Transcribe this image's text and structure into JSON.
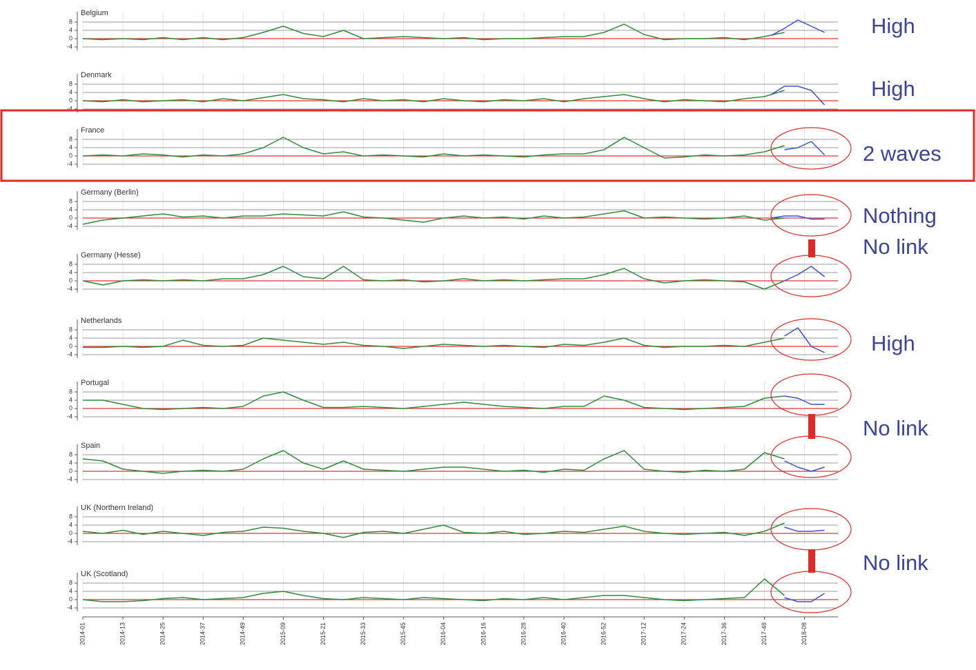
{
  "chart_data": [
    {
      "type": "line",
      "title": "Belgium",
      "ylim": [
        -5,
        11
      ],
      "yticks": [
        -4,
        0,
        4,
        8
      ],
      "series": [
        {
          "color": "#2e8b3a",
          "x": [
            0,
            6,
            12,
            18,
            24,
            30,
            36,
            42,
            48,
            54,
            60,
            66,
            72,
            78,
            84,
            90,
            96,
            102,
            108,
            114,
            120,
            126,
            132,
            138,
            144,
            150,
            156,
            162,
            168,
            174,
            180,
            186,
            192,
            198,
            204,
            210
          ],
          "values": [
            0,
            -0.5,
            0,
            -0.5,
            0.5,
            -0.5,
            0.5,
            -0.5,
            0.5,
            3,
            6,
            2.5,
            1,
            4,
            0,
            0.5,
            1,
            0.5,
            0,
            0.5,
            -0.5,
            0,
            0,
            0.5,
            1,
            1,
            3,
            7,
            2,
            -0.5,
            0,
            0,
            0.5,
            -0.5,
            1,
            3
          ]
        },
        {
          "color": "#3b4fd0",
          "x": [
            206,
            210,
            214,
            218,
            222
          ],
          "values": [
            1.5,
            5,
            9,
            6,
            3
          ]
        }
      ]
    },
    {
      "type": "line",
      "title": "Denmark",
      "ylim": [
        -5,
        11
      ],
      "yticks": [
        -4,
        0,
        4,
        8
      ],
      "series": [
        {
          "color": "#2e8b3a",
          "x": [
            0,
            6,
            12,
            18,
            24,
            30,
            36,
            42,
            48,
            54,
            60,
            66,
            72,
            78,
            84,
            90,
            96,
            102,
            108,
            114,
            120,
            126,
            132,
            138,
            144,
            150,
            156,
            162,
            168,
            174,
            180,
            186,
            192,
            198,
            204,
            210
          ],
          "values": [
            0,
            -0.5,
            0.5,
            -0.5,
            0,
            0.5,
            -0.5,
            1,
            0,
            1.5,
            3,
            1,
            0.5,
            -0.5,
            1,
            0,
            0.5,
            -0.5,
            1,
            0,
            -0.5,
            0.5,
            0,
            1,
            -0.5,
            1,
            2,
            3,
            1,
            -0.5,
            0.5,
            0,
            -0.5,
            1,
            2,
            5
          ]
        },
        {
          "color": "#3b4fd0",
          "x": [
            206,
            210,
            214,
            218,
            222
          ],
          "values": [
            3,
            7,
            7,
            5,
            -2
          ]
        }
      ]
    },
    {
      "type": "line",
      "title": "France",
      "ylim": [
        -5,
        11
      ],
      "yticks": [
        -4,
        0,
        4,
        8
      ],
      "series": [
        {
          "color": "#2e8b3a",
          "x": [
            0,
            6,
            12,
            18,
            24,
            30,
            36,
            42,
            48,
            54,
            60,
            66,
            72,
            78,
            84,
            90,
            96,
            102,
            108,
            114,
            120,
            126,
            132,
            138,
            144,
            150,
            156,
            162,
            168,
            174,
            180,
            186,
            192,
            198,
            204,
            210
          ],
          "values": [
            0,
            0.5,
            0,
            1,
            0.5,
            -0.5,
            0.5,
            0,
            1,
            4,
            9,
            4,
            1,
            2,
            0,
            0.5,
            0,
            -0.5,
            1,
            0,
            0.5,
            0,
            -0.5,
            0.5,
            1,
            1,
            3,
            9,
            4,
            -1,
            -0.5,
            0.5,
            0,
            0.5,
            2,
            5
          ]
        },
        {
          "color": "#3b4fd0",
          "x": [
            210,
            214,
            218,
            222
          ],
          "values": [
            3,
            4,
            7,
            0.5
          ]
        }
      ]
    },
    {
      "type": "line",
      "title": "Germany (Berlin)",
      "ylim": [
        -5,
        11
      ],
      "yticks": [
        -4,
        0,
        4,
        8
      ],
      "series": [
        {
          "color": "#2e8b3a",
          "x": [
            0,
            6,
            12,
            18,
            24,
            30,
            36,
            42,
            48,
            54,
            60,
            66,
            72,
            78,
            84,
            90,
            96,
            102,
            108,
            114,
            120,
            126,
            132,
            138,
            144,
            150,
            156,
            162,
            168,
            174,
            180,
            186,
            192,
            198,
            204,
            210
          ],
          "values": [
            -3,
            -1,
            0,
            1,
            2,
            0.5,
            1,
            0,
            1,
            1,
            2,
            1.5,
            1,
            3,
            0.5,
            0,
            -1,
            -2,
            0,
            1,
            0,
            0.5,
            -0.5,
            1,
            0,
            0.5,
            2,
            3.5,
            0,
            0.5,
            0,
            -0.5,
            0,
            1,
            -1,
            0
          ]
        },
        {
          "color": "#3b4fd0",
          "x": [
            206,
            210,
            214,
            218,
            222
          ],
          "values": [
            0,
            1,
            1,
            -0.5,
            -0.5
          ]
        }
      ]
    },
    {
      "type": "line",
      "title": "Germany (Hesse)",
      "ylim": [
        -5,
        11
      ],
      "yticks": [
        -4,
        0,
        4,
        8
      ],
      "series": [
        {
          "color": "#2e8b3a",
          "x": [
            0,
            6,
            12,
            18,
            24,
            30,
            36,
            42,
            48,
            54,
            60,
            66,
            72,
            78,
            84,
            90,
            96,
            102,
            108,
            114,
            120,
            126,
            132,
            138,
            144,
            150,
            156,
            162,
            168,
            174,
            180,
            186,
            192,
            198,
            204,
            210
          ],
          "values": [
            0,
            -2,
            0,
            0.5,
            0,
            0.5,
            0,
            1,
            1,
            3,
            7,
            2,
            1,
            7,
            0.5,
            0,
            0.5,
            -0.5,
            0,
            1,
            0,
            0.5,
            0,
            0.5,
            1,
            1,
            3,
            6,
            1,
            -1,
            0,
            0.5,
            0,
            -0.5,
            -4,
            0
          ]
        },
        {
          "color": "#3b4fd0",
          "x": [
            210,
            214,
            218,
            222
          ],
          "values": [
            0,
            3,
            7,
            2
          ]
        }
      ]
    },
    {
      "type": "line",
      "title": "Netherlands",
      "ylim": [
        -5,
        11
      ],
      "yticks": [
        -4,
        0,
        4,
        8
      ],
      "series": [
        {
          "color": "#2e8b3a",
          "x": [
            0,
            6,
            12,
            18,
            24,
            30,
            36,
            42,
            48,
            54,
            60,
            66,
            72,
            78,
            84,
            90,
            96,
            102,
            108,
            114,
            120,
            126,
            132,
            138,
            144,
            150,
            156,
            162,
            168,
            174,
            180,
            186,
            192,
            198,
            204,
            210
          ],
          "values": [
            -0.5,
            -0.5,
            0,
            -0.5,
            0,
            3,
            0.5,
            0,
            0.5,
            4,
            3,
            2,
            1,
            2,
            0.5,
            0,
            -1,
            0,
            1,
            0.5,
            0,
            0.5,
            0,
            -0.5,
            1,
            0.5,
            2,
            4,
            0.5,
            -0.5,
            0,
            0,
            0.5,
            0,
            2,
            4
          ]
        },
        {
          "color": "#3b4fd0",
          "x": [
            210,
            214,
            218,
            222
          ],
          "values": [
            5,
            9,
            0,
            -3
          ]
        }
      ]
    },
    {
      "type": "line",
      "title": "Portugal",
      "ylim": [
        -5,
        11
      ],
      "yticks": [
        -4,
        0,
        4,
        8
      ],
      "series": [
        {
          "color": "#2e8b3a",
          "x": [
            0,
            6,
            12,
            18,
            24,
            30,
            36,
            42,
            48,
            54,
            60,
            66,
            72,
            78,
            84,
            90,
            96,
            102,
            108,
            114,
            120,
            126,
            132,
            138,
            144,
            150,
            156,
            162,
            168,
            174,
            180,
            186,
            192,
            198,
            204,
            210
          ],
          "values": [
            4,
            4,
            2,
            0,
            -0.5,
            0,
            0.5,
            0,
            1,
            6,
            8,
            4,
            0.5,
            0.5,
            1,
            0.5,
            0,
            1,
            2,
            3,
            2,
            1,
            0.5,
            0,
            1,
            1,
            6,
            4,
            0.5,
            0,
            -0.5,
            0,
            0.5,
            1,
            5,
            6
          ]
        },
        {
          "color": "#3b4fd0",
          "x": [
            210,
            214,
            218,
            222
          ],
          "values": [
            6,
            5,
            2,
            2
          ]
        }
      ]
    },
    {
      "type": "line",
      "title": "Spain",
      "ylim": [
        -5,
        11
      ],
      "yticks": [
        -4,
        0,
        4,
        8
      ],
      "series": [
        {
          "color": "#2e8b3a",
          "x": [
            0,
            6,
            12,
            18,
            24,
            30,
            36,
            42,
            48,
            54,
            60,
            66,
            72,
            78,
            84,
            90,
            96,
            102,
            108,
            114,
            120,
            126,
            132,
            138,
            144,
            150,
            156,
            162,
            168,
            174,
            180,
            186,
            192,
            198,
            204,
            210
          ],
          "values": [
            6,
            5,
            1,
            0,
            -1,
            0,
            0.5,
            0,
            1,
            6,
            10,
            4,
            1,
            5,
            1,
            0.5,
            0,
            1,
            2,
            2,
            1,
            0,
            0.5,
            -0.5,
            1,
            0.5,
            6,
            10,
            1,
            0,
            -0.5,
            0.5,
            0,
            1,
            9,
            6
          ]
        },
        {
          "color": "#3b4fd0",
          "x": [
            210,
            214,
            218,
            222
          ],
          "values": [
            5,
            2,
            0,
            2
          ]
        }
      ]
    },
    {
      "type": "line",
      "title": "UK (Northern Ireland)",
      "ylim": [
        -5,
        11
      ],
      "yticks": [
        -4,
        0,
        4,
        8
      ],
      "series": [
        {
          "color": "#2e8b3a",
          "x": [
            0,
            6,
            12,
            18,
            24,
            30,
            36,
            42,
            48,
            54,
            60,
            66,
            72,
            78,
            84,
            90,
            96,
            102,
            108,
            114,
            120,
            126,
            132,
            138,
            144,
            150,
            156,
            162,
            168,
            174,
            180,
            186,
            192,
            198,
            204,
            210
          ],
          "values": [
            1,
            0,
            1.5,
            -0.5,
            1,
            0,
            -1,
            0.5,
            1,
            3,
            2.5,
            1,
            0,
            -2,
            0.5,
            1,
            0,
            2,
            4,
            0.5,
            0,
            1,
            -0.5,
            0,
            1,
            0.5,
            2,
            3.5,
            1,
            0,
            -0.5,
            0,
            0.5,
            -1,
            1,
            5
          ]
        },
        {
          "color": "#3b4fd0",
          "x": [
            210,
            214,
            218,
            222
          ],
          "values": [
            3,
            1,
            1,
            1.5
          ]
        }
      ]
    },
    {
      "type": "line",
      "title": "UK (Scotland)",
      "ylim": [
        -5,
        11
      ],
      "yticks": [
        -4,
        0,
        4,
        8
      ],
      "series": [
        {
          "color": "#2e8b3a",
          "x": [
            0,
            6,
            12,
            18,
            24,
            30,
            36,
            42,
            48,
            54,
            60,
            66,
            72,
            78,
            84,
            90,
            96,
            102,
            108,
            114,
            120,
            126,
            132,
            138,
            144,
            150,
            156,
            162,
            168,
            174,
            180,
            186,
            192,
            198,
            204,
            210
          ],
          "values": [
            0,
            -1,
            -1,
            -0.5,
            0.5,
            1,
            0,
            0.5,
            1,
            3,
            4,
            2,
            0.5,
            0,
            1,
            0.5,
            0,
            1,
            0.5,
            0,
            -0.5,
            0.5,
            0,
            1,
            0,
            1,
            2,
            2,
            1,
            0,
            -0.5,
            0,
            0.5,
            1,
            10,
            2
          ]
        },
        {
          "color": "#3b4fd0",
          "x": [
            210,
            214,
            218,
            222
          ],
          "values": [
            1,
            -1,
            -1,
            3
          ]
        }
      ]
    }
  ],
  "shared_x_axis": {
    "xlim": [
      0,
      226
    ],
    "xticks": [
      {
        "value": 0,
        "label": "2014-01"
      },
      {
        "value": 12,
        "label": "2014-13"
      },
      {
        "value": 24,
        "label": "2014-25"
      },
      {
        "value": 36,
        "label": "2014-37"
      },
      {
        "value": 48,
        "label": "2014-49"
      },
      {
        "value": 60,
        "label": "2015-09"
      },
      {
        "value": 72,
        "label": "2015-21"
      },
      {
        "value": 84,
        "label": "2015-33"
      },
      {
        "value": 96,
        "label": "2015-45"
      },
      {
        "value": 108,
        "label": "2016-04"
      },
      {
        "value": 120,
        "label": "2016-16"
      },
      {
        "value": 132,
        "label": "2016-28"
      },
      {
        "value": 144,
        "label": "2016-40"
      },
      {
        "value": 156,
        "label": "2016-52"
      },
      {
        "value": 168,
        "label": "2017-12"
      },
      {
        "value": 180,
        "label": "2017-24"
      },
      {
        "value": 192,
        "label": "2017-36"
      },
      {
        "value": 204,
        "label": "2017-48"
      },
      {
        "value": 216,
        "label": "2018-08"
      }
    ]
  },
  "annotations": [
    "High",
    "High",
    "2 waves",
    "Nothing",
    "No link",
    "High",
    "No link",
    "No link"
  ]
}
